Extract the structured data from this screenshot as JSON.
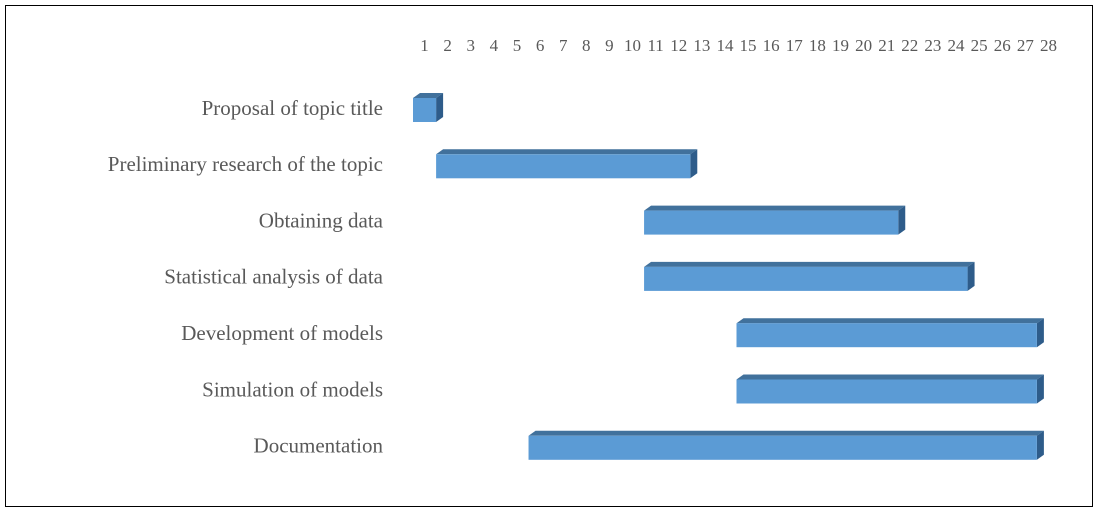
{
  "chart_data": {
    "type": "gantt",
    "categories": [
      "Proposal of topic title",
      "Preliminary research of the topic",
      "Obtaining data",
      "Statistical analysis of data",
      "Development of models",
      "Simulation of models",
      "Documentation"
    ],
    "start": [
      0.5,
      1.5,
      10.5,
      10.5,
      14.5,
      14.5,
      5.5
    ],
    "values": [
      1,
      11,
      11,
      14,
      13,
      13,
      22
    ],
    "color": "#5b9bd5",
    "xlim": [
      0.5,
      28.5
    ],
    "xticks": [
      1,
      2,
      3,
      4,
      5,
      6,
      7,
      8,
      9,
      10,
      11,
      12,
      13,
      14,
      15,
      16,
      17,
      18,
      19,
      20,
      21,
      22,
      23,
      24,
      25,
      26,
      27,
      28
    ]
  }
}
